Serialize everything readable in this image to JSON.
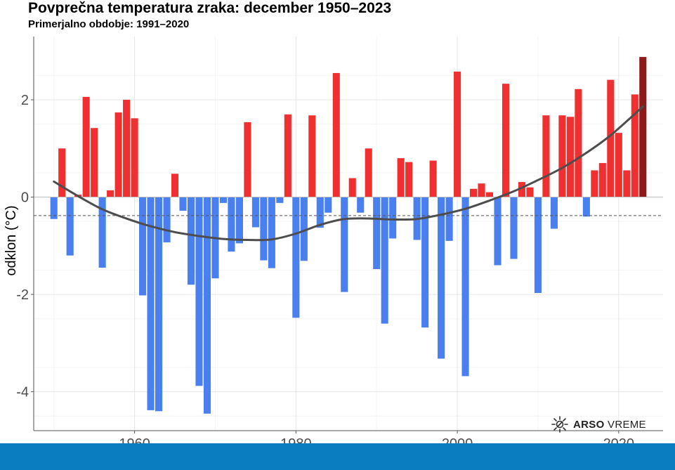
{
  "chart_data": {
    "type": "bar",
    "title": "Povprečna temperatura zraka: december 1950–2023",
    "subtitle": "Primerjalno obdobje: 1991–2020",
    "xlabel": "",
    "ylabel": "odklon (°C)",
    "xlim": [
      1947.5,
      2025.5
    ],
    "ylim": [
      -4.8,
      3.3
    ],
    "x_ticks": [
      1960,
      1980,
      2000,
      2020
    ],
    "y_ticks": [
      -4,
      -2,
      0,
      2
    ],
    "reference_line": -0.38,
    "colors": {
      "positive": "#f03030",
      "negative": "#4a7ff0",
      "latest": "#8b1a1a",
      "trend": "#4d4d4d"
    },
    "x": [
      1950,
      1951,
      1952,
      1953,
      1954,
      1955,
      1956,
      1957,
      1958,
      1959,
      1960,
      1961,
      1962,
      1963,
      1964,
      1965,
      1966,
      1967,
      1968,
      1969,
      1970,
      1971,
      1972,
      1973,
      1974,
      1975,
      1976,
      1977,
      1978,
      1979,
      1980,
      1981,
      1982,
      1983,
      1984,
      1985,
      1986,
      1987,
      1988,
      1989,
      1990,
      1991,
      1992,
      1993,
      1994,
      1995,
      1996,
      1997,
      1998,
      1999,
      2000,
      2001,
      2002,
      2003,
      2004,
      2005,
      2006,
      2007,
      2008,
      2009,
      2010,
      2011,
      2012,
      2013,
      2014,
      2015,
      2016,
      2017,
      2018,
      2019,
      2020,
      2021,
      2022,
      2023
    ],
    "values": [
      -0.45,
      1.0,
      -1.2,
      0.05,
      2.06,
      1.42,
      -1.45,
      0.14,
      1.74,
      2.0,
      1.62,
      -2.02,
      -4.38,
      -4.4,
      -0.93,
      0.48,
      -0.28,
      -1.8,
      -3.88,
      -4.45,
      -1.67,
      -0.12,
      -1.12,
      -0.95,
      1.54,
      -0.62,
      -1.3,
      -1.46,
      -0.12,
      1.7,
      -2.48,
      -1.31,
      1.68,
      -0.63,
      -0.32,
      2.55,
      -1.95,
      0.39,
      -0.32,
      1.0,
      -1.48,
      -2.6,
      -0.85,
      0.8,
      0.72,
      -0.88,
      -2.68,
      0.75,
      -3.32,
      -0.9,
      2.58,
      -3.68,
      0.17,
      0.28,
      0.1,
      -1.4,
      2.33,
      -1.27,
      0.31,
      0.2,
      -1.97,
      1.68,
      -0.65,
      1.68,
      1.65,
      2.22,
      -0.4,
      0.55,
      0.7,
      2.41,
      1.32,
      0.55,
      2.11,
      2.88
    ],
    "trend": {
      "x": [
        1950,
        1953,
        1956,
        1959,
        1962,
        1965,
        1968,
        1971,
        1974,
        1977,
        1980,
        1983,
        1986,
        1989,
        1992,
        1995,
        1998,
        2001,
        2004,
        2007,
        2010,
        2013,
        2016,
        2019,
        2023
      ],
      "y": [
        0.32,
        0.02,
        -0.25,
        -0.44,
        -0.6,
        -0.72,
        -0.8,
        -0.86,
        -0.88,
        -0.87,
        -0.75,
        -0.57,
        -0.45,
        -0.44,
        -0.46,
        -0.45,
        -0.36,
        -0.24,
        -0.07,
        0.12,
        0.35,
        0.6,
        0.91,
        1.27,
        1.86
      ]
    }
  },
  "branding": {
    "logo_icon": "sun-icon",
    "logo_bold": "ARSO",
    "logo_text": "VREME"
  }
}
